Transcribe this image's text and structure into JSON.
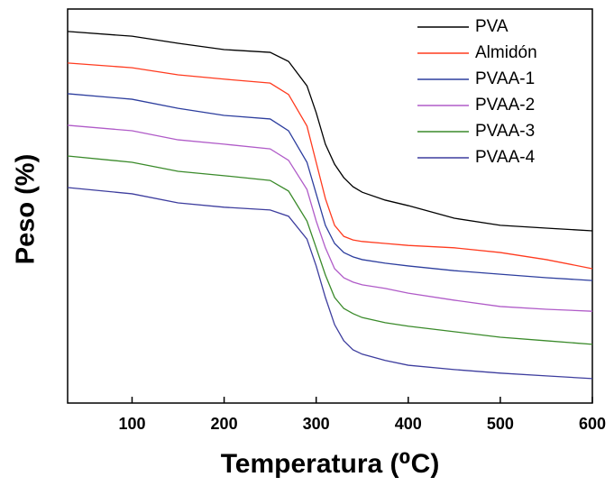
{
  "chart_data": {
    "type": "line",
    "xlabel": "Temperatura (⁰C)",
    "ylabel": "Peso (%)",
    "x": [
      30,
      100,
      150,
      200,
      250,
      270,
      290,
      300,
      310,
      320,
      330,
      340,
      350,
      375,
      400,
      450,
      500,
      550,
      600
    ],
    "xlim": [
      30,
      600
    ],
    "xticks": [
      100,
      200,
      300,
      400,
      500,
      600
    ],
    "ylim": [
      0,
      100
    ],
    "legend": "upper right",
    "series": [
      {
        "name": "PVA",
        "color": "#000000",
        "values": [
          94.3,
          93.1,
          91.3,
          89.7,
          89.0,
          86.7,
          80.5,
          73.7,
          65.7,
          60.6,
          57.2,
          54.9,
          53.5,
          51.5,
          50.1,
          46.9,
          45.1,
          44.4,
          43.7
        ]
      },
      {
        "name": "Almidón",
        "color": "#ff3b1f",
        "values": [
          86.3,
          85.1,
          83.3,
          82.2,
          81.2,
          78.3,
          70.3,
          61.1,
          51.9,
          45.1,
          42.3,
          41.4,
          41.0,
          40.5,
          40.0,
          39.4,
          38.2,
          36.4,
          34.1
        ]
      },
      {
        "name": "PVAA-1",
        "color": "#2d3e9e",
        "values": [
          78.5,
          77.1,
          74.8,
          73.0,
          72.1,
          69.1,
          61.1,
          53.1,
          45.1,
          40.5,
          38.2,
          37.1,
          36.4,
          35.5,
          34.8,
          33.6,
          32.7,
          31.8,
          31.1
        ]
      },
      {
        "name": "PVAA-2",
        "color": "#b05bc8",
        "values": [
          70.5,
          69.1,
          66.8,
          65.7,
          64.5,
          61.6,
          54.2,
          46.2,
          39.4,
          34.1,
          31.8,
          30.7,
          30.0,
          29.1,
          27.9,
          26.1,
          24.5,
          23.8,
          23.3
        ]
      },
      {
        "name": "PVAA-3",
        "color": "#3a8a2a",
        "values": [
          62.7,
          61.1,
          58.8,
          57.7,
          56.5,
          53.8,
          46.2,
          39.4,
          32.5,
          26.8,
          24.0,
          22.7,
          21.7,
          20.4,
          19.5,
          18.1,
          16.7,
          15.8,
          14.9
        ]
      },
      {
        "name": "PVAA-4",
        "color": "#3d3d9e",
        "values": [
          54.7,
          53.1,
          50.8,
          49.7,
          49.0,
          47.4,
          41.6,
          34.8,
          26.8,
          19.9,
          15.8,
          13.5,
          12.4,
          10.8,
          9.6,
          8.5,
          7.6,
          6.9,
          6.2
        ]
      }
    ]
  }
}
